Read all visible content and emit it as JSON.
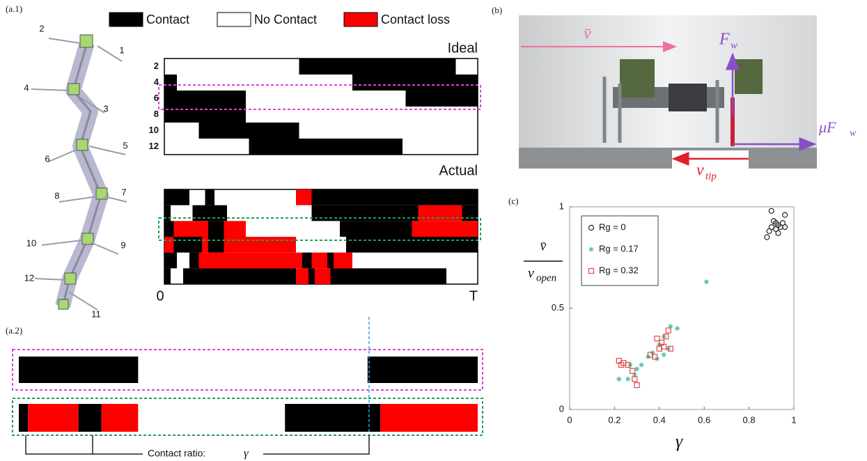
{
  "panel_labels": {
    "a1": "(a.1)",
    "a2": "(a.2)",
    "b": "(b)",
    "c": "(c)"
  },
  "legend": [
    {
      "label": "Contact",
      "color": "#000000"
    },
    {
      "label": "No Contact",
      "color": "#ffffff"
    },
    {
      "label": "Contact loss",
      "color": "#ff0000"
    }
  ],
  "robot": {
    "leg_labels": [
      "1",
      "2",
      "3",
      "4",
      "5",
      "6",
      "7",
      "8",
      "9",
      "10",
      "11",
      "12"
    ]
  },
  "ideal": {
    "title": "Ideal",
    "rows": [
      {
        "label": "2",
        "segments": [
          {
            "color": "#000000",
            "start": 0.43,
            "end": 0.93
          }
        ]
      },
      {
        "label": "4",
        "segments": [
          {
            "color": "#000000",
            "start": 0,
            "end": 0.04
          },
          {
            "color": "#000000",
            "start": 0.6,
            "end": 1
          }
        ]
      },
      {
        "label": "6",
        "segments": [
          {
            "color": "#000000",
            "start": 0,
            "end": 0.26
          },
          {
            "color": "#000000",
            "start": 0.77,
            "end": 1
          }
        ]
      },
      {
        "label": "8",
        "segments": [
          {
            "color": "#000000",
            "start": 0,
            "end": 0.26
          }
        ]
      },
      {
        "label": "10",
        "segments": [
          {
            "color": "#000000",
            "start": 0.11,
            "end": 0.43
          }
        ]
      },
      {
        "label": "12",
        "segments": [
          {
            "color": "#000000",
            "start": 0.27,
            "end": 0.76
          }
        ]
      }
    ]
  },
  "actual": {
    "title": "Actual",
    "time_start": "0",
    "time_end": "T",
    "rows": [
      {
        "segments": [
          {
            "color": "#000000",
            "start": 0,
            "end": 0.08
          },
          {
            "color": "#000000",
            "start": 0.13,
            "end": 0.16
          },
          {
            "color": "#ff0000",
            "start": 0.42,
            "end": 0.47
          },
          {
            "color": "#000000",
            "start": 0.47,
            "end": 1
          }
        ]
      },
      {
        "segments": [
          {
            "color": "#000000",
            "start": 0,
            "end": 0.02
          },
          {
            "color": "#000000",
            "start": 0.09,
            "end": 0.2
          },
          {
            "color": "#000000",
            "start": 0.47,
            "end": 0.81
          },
          {
            "color": "#ff0000",
            "start": 0.81,
            "end": 0.95
          },
          {
            "color": "#000000",
            "start": 0.95,
            "end": 1
          }
        ]
      },
      {
        "segments": [
          {
            "color": "#000000",
            "start": 0,
            "end": 0.03
          },
          {
            "color": "#ff0000",
            "start": 0.03,
            "end": 0.14
          },
          {
            "color": "#000000",
            "start": 0.14,
            "end": 0.19
          },
          {
            "color": "#ff0000",
            "start": 0.19,
            "end": 0.26
          },
          {
            "color": "#000000",
            "start": 0.56,
            "end": 0.79
          },
          {
            "color": "#ff0000",
            "start": 0.79,
            "end": 1
          }
        ]
      },
      {
        "segments": [
          {
            "color": "#ff0000",
            "start": 0,
            "end": 0.03
          },
          {
            "color": "#000000",
            "start": 0.03,
            "end": 0.12
          },
          {
            "color": "#ff0000",
            "start": 0.12,
            "end": 0.14
          },
          {
            "color": "#000000",
            "start": 0.14,
            "end": 0.19
          },
          {
            "color": "#ff0000",
            "start": 0.19,
            "end": 0.42
          },
          {
            "color": "#000000",
            "start": 0.58,
            "end": 1
          }
        ]
      },
      {
        "segments": [
          {
            "color": "#000000",
            "start": 0,
            "end": 0.04
          },
          {
            "color": "#000000",
            "start": 0.08,
            "end": 0.11
          },
          {
            "color": "#ff0000",
            "start": 0.11,
            "end": 0.44
          },
          {
            "color": "#000000",
            "start": 0.44,
            "end": 0.47
          },
          {
            "color": "#ff0000",
            "start": 0.47,
            "end": 0.52
          },
          {
            "color": "#000000",
            "start": 0.52,
            "end": 0.54
          },
          {
            "color": "#ff0000",
            "start": 0.54,
            "end": 0.6
          }
        ]
      },
      {
        "segments": [
          {
            "color": "#000000",
            "start": 0,
            "end": 0.02
          },
          {
            "color": "#000000",
            "start": 0.06,
            "end": 0.42
          },
          {
            "color": "#ff0000",
            "start": 0.42,
            "end": 0.46
          },
          {
            "color": "#000000",
            "start": 0.46,
            "end": 0.48
          },
          {
            "color": "#ff0000",
            "start": 0.48,
            "end": 0.53
          },
          {
            "color": "#000000",
            "start": 0.53,
            "end": 0.9
          }
        ]
      }
    ]
  },
  "contact_ratio": {
    "label": "Contact ratio:",
    "symbol": "γ",
    "rows": [
      {
        "segments": [
          {
            "color": "#000000",
            "start": 0,
            "end": 0.26
          },
          {
            "color": "#000000",
            "start": 0.76,
            "end": 1
          }
        ]
      },
      {
        "segments": [
          {
            "color": "#000000",
            "start": 0,
            "end": 0.02
          },
          {
            "color": "#ff0000",
            "start": 0.02,
            "end": 0.13
          },
          {
            "color": "#000000",
            "start": 0.13,
            "end": 0.18
          },
          {
            "color": "#ff0000",
            "start": 0.18,
            "end": 0.26
          },
          {
            "color": "#000000",
            "start": 0.58,
            "end": 0.788
          },
          {
            "color": "#ff0000",
            "start": 0.788,
            "end": 1
          }
        ]
      }
    ]
  },
  "photo_annotations": {
    "body_velocity": {
      "text": "v̄"
    },
    "normal_force": {
      "text": "F",
      "sub": "w"
    },
    "friction_force": {
      "text": "μF",
      "sub": "w"
    },
    "tip_velocity": {
      "text": "v",
      "sub": "tip"
    }
  },
  "chart_data": {
    "type": "scatter",
    "x_label": "γ",
    "y_label": {
      "numerator": "v̄",
      "denominator": "v",
      "denominator_sub": "open"
    },
    "xlim": [
      0,
      1
    ],
    "ylim": [
      0,
      1
    ],
    "xticks": [
      0,
      0.2,
      0.4,
      0.6,
      0.8,
      1
    ],
    "yticks": [
      0,
      0.5,
      1
    ],
    "legend_position": "upper left",
    "series": [
      {
        "name": "Rg = 0",
        "color": "#222222",
        "marker": "circle",
        "x": [
          0.9,
          0.96,
          0.91,
          0.92,
          0.93,
          0.95,
          0.94,
          0.89,
          0.92,
          0.88,
          0.93,
          0.96,
          0.9
        ],
        "values": [
          0.98,
          0.96,
          0.93,
          0.92,
          0.91,
          0.92,
          0.9,
          0.88,
          0.89,
          0.85,
          0.87,
          0.9,
          0.9
        ]
      },
      {
        "name": "Rg = 0.17",
        "color": "#4fc4a8",
        "marker": "star",
        "x": [
          0.61,
          0.45,
          0.48,
          0.42,
          0.4,
          0.44,
          0.37,
          0.35,
          0.42,
          0.39,
          0.3,
          0.29,
          0.22,
          0.26,
          0.32,
          0.27
        ],
        "values": [
          0.63,
          0.41,
          0.4,
          0.36,
          0.32,
          0.3,
          0.28,
          0.26,
          0.27,
          0.25,
          0.2,
          0.17,
          0.15,
          0.15,
          0.22,
          0.22
        ]
      },
      {
        "name": "Rg = 0.32",
        "color": "#e04848",
        "marker": "square",
        "x": [
          0.22,
          0.24,
          0.26,
          0.23,
          0.28,
          0.3,
          0.29,
          0.39,
          0.41,
          0.43,
          0.4,
          0.42,
          0.45,
          0.38,
          0.36,
          0.44
        ],
        "values": [
          0.24,
          0.23,
          0.22,
          0.22,
          0.19,
          0.12,
          0.15,
          0.35,
          0.33,
          0.36,
          0.3,
          0.31,
          0.3,
          0.26,
          0.27,
          0.39
        ]
      }
    ]
  }
}
